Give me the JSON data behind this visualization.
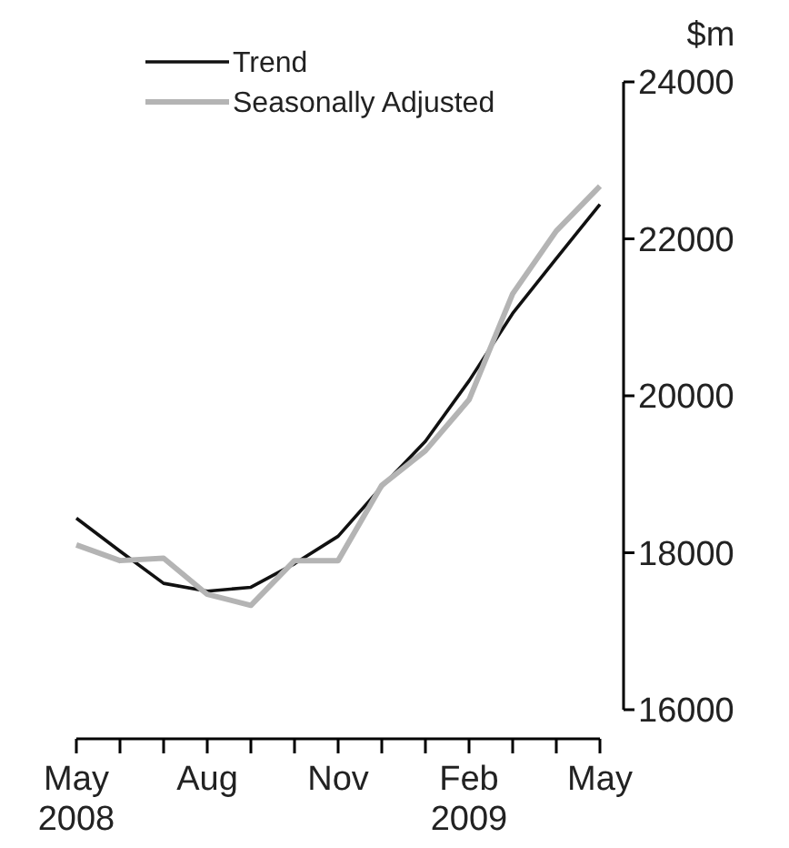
{
  "chart_data": {
    "type": "line",
    "ylabel": "$m",
    "categories": [
      "May 2008",
      null,
      null,
      "Aug",
      null,
      null,
      "Nov",
      null,
      null,
      "Feb 2009",
      null,
      null,
      "May"
    ],
    "series": [
      {
        "name": "Trend",
        "color": "#111111",
        "values": [
          18440,
          18020,
          17610,
          17510,
          17560,
          17860,
          18210,
          18840,
          19420,
          20190,
          21050,
          21750,
          22440
        ]
      },
      {
        "name": "Seasonally Adjusted",
        "color": "#b4b4b4",
        "values": [
          18100,
          17900,
          17930,
          17470,
          17330,
          17900,
          17900,
          18860,
          19300,
          19950,
          21300,
          22100,
          22670
        ]
      }
    ],
    "ylim": [
      16000,
      24000
    ],
    "yticks": [
      16000,
      18000,
      20000,
      22000,
      24000
    ],
    "grid": false,
    "legend": "top left",
    "marker": "none",
    "line_style": "solid"
  }
}
